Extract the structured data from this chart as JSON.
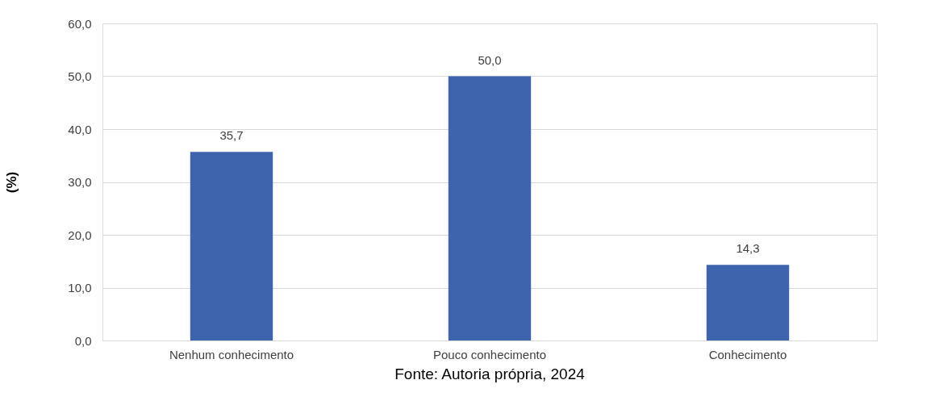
{
  "chart_data": {
    "type": "bar",
    "ylabel": "(%)",
    "categories": [
      "Nenhum conhecimento",
      "Pouco conhecimento",
      "Conhecimento"
    ],
    "values": [
      35.7,
      50.0,
      14.3
    ],
    "color": "#3d64ad",
    "value_labels": [
      "35,7",
      "50,0",
      "14,3"
    ],
    "ylim": [
      0,
      60
    ],
    "yticks": [
      {
        "value": 0,
        "label": "0,0"
      },
      {
        "value": 10,
        "label": "10,0"
      },
      {
        "value": 20,
        "label": "20,0"
      },
      {
        "value": 30,
        "label": "30,0"
      },
      {
        "value": 40,
        "label": "40,0"
      },
      {
        "value": 50,
        "label": "50,0"
      },
      {
        "value": 60,
        "label": "60,0"
      }
    ],
    "grid": "y",
    "annotations": [
      "Fonte: Autoria própria, 2024"
    ]
  }
}
